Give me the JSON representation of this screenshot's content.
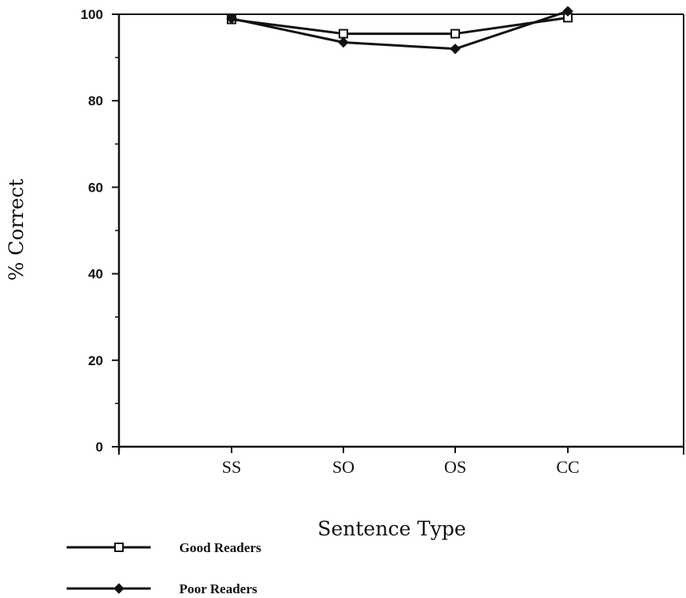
{
  "chart_data": {
    "type": "line",
    "categories": [
      "SS",
      "SO",
      "OS",
      "CC"
    ],
    "series": [
      {
        "name": "Good Readers",
        "values": [
          98.8,
          95.5,
          95.5,
          99.2
        ],
        "marker": "square"
      },
      {
        "name": "Poor Readers",
        "values": [
          99.0,
          93.5,
          92.0,
          100.7
        ],
        "marker": "diamond"
      }
    ],
    "xlabel": "Sentence Type",
    "ylabel": "% Correct",
    "ylim": [
      0,
      100
    ],
    "yticks": [
      0,
      20,
      40,
      60,
      80,
      100
    ],
    "grid": false,
    "legend_position": "bottom-left",
    "line_color": "#111111"
  }
}
